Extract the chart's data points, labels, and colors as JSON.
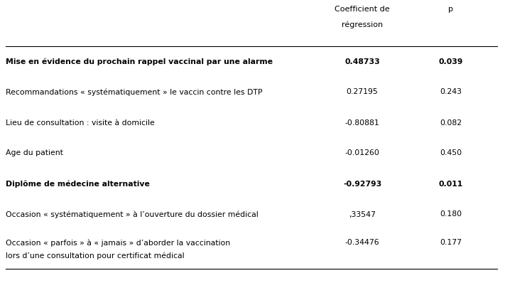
{
  "col_header_1a": "Coefficient de",
  "col_header_1b": "régression",
  "col_header_2": "p",
  "rows": [
    {
      "label": "Mise en évidence du prochain rappel vaccinal par une alarme",
      "coef": "0.48733",
      "p": "0.039",
      "bold": true,
      "two_lines": false,
      "label2": ""
    },
    {
      "label": "Recommandations « systématiquement » le vaccin contre les DTP",
      "coef": "0.27195",
      "p": "0.243",
      "bold": false,
      "two_lines": false,
      "label2": ""
    },
    {
      "label": "Lieu de consultation : visite à domicile",
      "coef": "-0.80881",
      "p": "0.082",
      "bold": false,
      "two_lines": false,
      "label2": ""
    },
    {
      "label": "Age du patient",
      "coef": "-0.01260",
      "p": "0.450",
      "bold": false,
      "two_lines": false,
      "label2": ""
    },
    {
      "label": "Diplôme de médecine alternative",
      "coef": "-0.92793",
      "p": "0.011",
      "bold": true,
      "two_lines": false,
      "label2": ""
    },
    {
      "label": "Occasion « systématiquement » à l’ouverture du dossier médical",
      "coef": ",33547",
      "p": "0.180",
      "bold": false,
      "two_lines": false,
      "label2": ""
    },
    {
      "label": "Occasion « parfois » à « jamais » d’aborder la vaccination",
      "coef": "-0.34476",
      "p": "0.177",
      "bold": false,
      "two_lines": true,
      "label2": "lors d’une consultation pour certificat médical"
    }
  ],
  "bg_color": "#ffffff",
  "text_color": "#000000",
  "line_color": "#000000",
  "font_size": 7.8,
  "header_font_size": 8.0
}
